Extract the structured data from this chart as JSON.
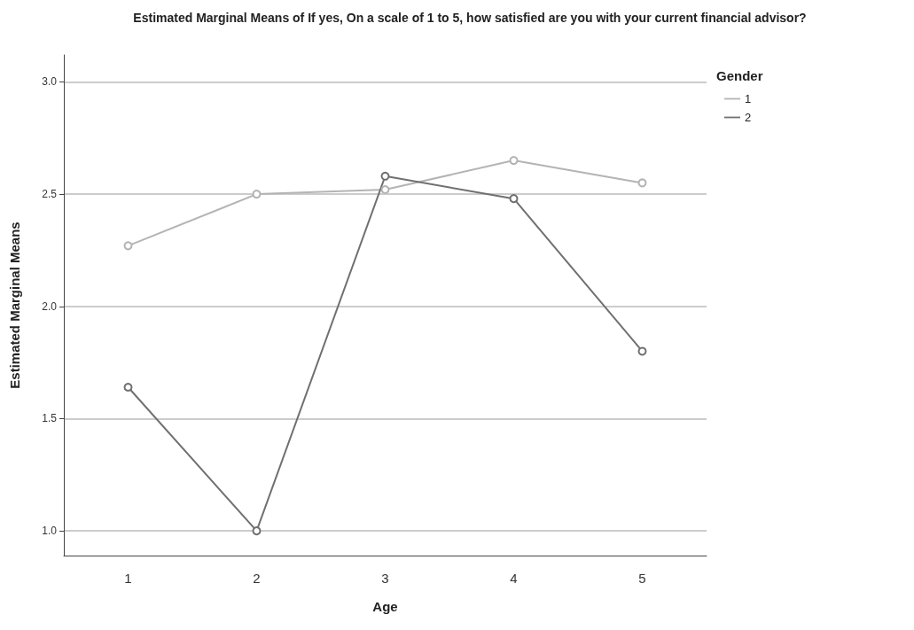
{
  "chart_data": {
    "type": "line",
    "title": "Estimated Marginal Means of If yes, On a scale of 1 to 5, how satisfied are you with your current financial advisor?",
    "xlabel": "Age",
    "ylabel": "Estimated Marginal Means",
    "legend_title": "Gender",
    "categories": [
      "1",
      "2",
      "3",
      "4",
      "5"
    ],
    "series": [
      {
        "name": "1",
        "color": "#b4b4b4",
        "values": [
          2.27,
          2.5,
          2.52,
          2.65,
          2.55
        ]
      },
      {
        "name": "2",
        "color": "#707070",
        "values": [
          1.64,
          1.0,
          2.58,
          2.48,
          1.8
        ]
      }
    ],
    "ylim": [
      0.89,
      3.12
    ],
    "yticks": [
      {
        "value": 1,
        "label": "1.0"
      },
      {
        "value": 1.5,
        "label": "1.5"
      },
      {
        "value": 2,
        "label": "2.0"
      },
      {
        "value": 2.5,
        "label": "2.5"
      },
      {
        "value": 3,
        "label": "3.0"
      }
    ],
    "grid": "y",
    "legend": "top right",
    "marker": "circle",
    "line_style": "solid"
  }
}
